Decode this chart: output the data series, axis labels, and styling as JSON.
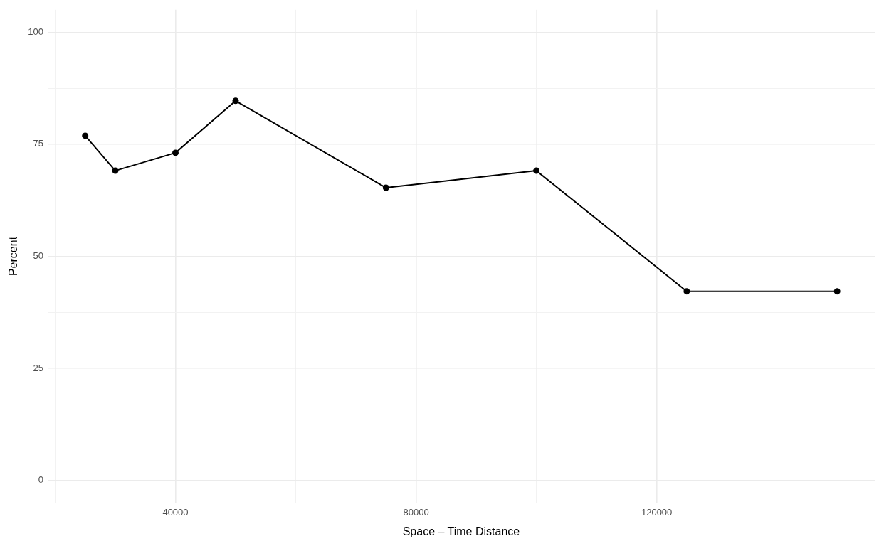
{
  "chart_data": {
    "type": "line",
    "xlabel": "Space – Time Distance",
    "ylabel": "Percent",
    "x": [
      25000,
      30000,
      40000,
      50000,
      75000,
      100000,
      125000,
      150000
    ],
    "series": [
      {
        "color": "#000000",
        "values": [
          76.9,
          69.1,
          73.1,
          84.7,
          65.3,
          69.1,
          42.2,
          42.2
        ]
      }
    ],
    "xlim": [
      18750,
      156250
    ],
    "xticks": [
      {
        "value": 20000,
        "label": null
      },
      40000,
      {
        "value": 60000,
        "label": null
      },
      80000,
      {
        "value": 100000,
        "label": null
      },
      120000,
      {
        "value": 140000,
        "label": null
      }
    ],
    "ylim": [
      -5,
      105
    ],
    "yticks": [
      0,
      {
        "value": 12.5,
        "label": null
      },
      25,
      {
        "value": 37.5,
        "label": null
      },
      50,
      {
        "value": 62.5,
        "label": null
      },
      75,
      {
        "value": 87.5,
        "label": null
      },
      100
    ],
    "grid": true,
    "marker": "circle",
    "line_style": "solid",
    "legend": false
  }
}
